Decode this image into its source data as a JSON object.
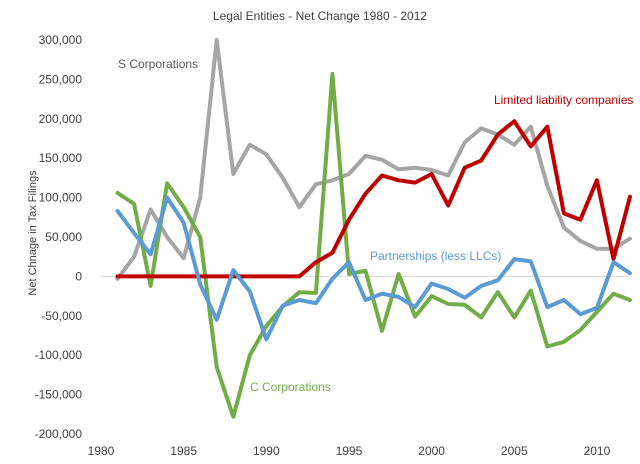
{
  "chart_data": {
    "type": "line",
    "title": "Legal Entities - Net Change 1980 - 2012",
    "xlabel": "",
    "ylabel": "Net Chnage in Tax Filings",
    "xlim": [
      1980,
      2012
    ],
    "ylim": [
      -200000,
      300000
    ],
    "x_ticks": [
      1980,
      1985,
      1990,
      1995,
      2000,
      2005,
      2010
    ],
    "x_tick_labels": [
      "1980",
      "1985",
      "1990",
      "1995",
      "2000",
      "2005",
      "2010"
    ],
    "y_ticks": [
      300000,
      250000,
      200000,
      150000,
      100000,
      50000,
      0,
      -50000,
      -100000,
      -150000,
      -200000
    ],
    "y_tick_labels": [
      "300,000",
      "250,000",
      "200,000",
      "150,000",
      "100,000",
      "50,000",
      "0",
      "-50,000",
      "-100,000",
      "-150,000",
      "-200,000"
    ],
    "grid": false,
    "legend": "none (series labeled directly on the plot)",
    "x": [
      1981,
      1982,
      1983,
      1984,
      1985,
      1986,
      1987,
      1988,
      1989,
      1990,
      1991,
      1992,
      1993,
      1994,
      1995,
      1996,
      1997,
      1998,
      1999,
      2000,
      2001,
      2002,
      2003,
      2004,
      2005,
      2006,
      2007,
      2008,
      2009,
      2010,
      2011,
      2012
    ],
    "series": [
      {
        "name": "S Corporations",
        "color": "#a5a5a5",
        "values": [
          -3000,
          25000,
          85000,
          50000,
          23000,
          100000,
          300000,
          130000,
          167000,
          155000,
          125000,
          88000,
          117000,
          122000,
          130000,
          153000,
          148000,
          136000,
          138000,
          135000,
          128000,
          170000,
          188000,
          180000,
          167000,
          190000,
          115000,
          62000,
          45000,
          35000,
          35000,
          48000
        ]
      },
      {
        "name": "C Corporations",
        "color": "#70ad47",
        "values": [
          106000,
          92000,
          -12000,
          118000,
          88000,
          50000,
          -115000,
          -178000,
          -100000,
          -63000,
          -38000,
          -20000,
          -21000,
          257000,
          3000,
          7000,
          -69000,
          3000,
          -51000,
          -25000,
          -35000,
          -36000,
          -52000,
          -20000,
          -52000,
          -18000,
          -89000,
          -83000,
          -68000,
          -45000,
          -22000,
          -30000
        ]
      },
      {
        "name": "Limited liability companies",
        "color": "#c00000",
        "values": [
          0,
          0,
          0,
          0,
          0,
          0,
          0,
          0,
          0,
          0,
          0,
          0,
          18000,
          30000,
          72000,
          105000,
          128000,
          122000,
          119000,
          130000,
          90000,
          138000,
          147000,
          180000,
          197000,
          165000,
          190000,
          80000,
          72000,
          122000,
          22000,
          101000
        ]
      },
      {
        "name": "Partnerships (less LLCs)",
        "color": "#5b9bd5",
        "values": [
          83000,
          55000,
          28000,
          100000,
          68000,
          -10000,
          -55000,
          8000,
          -19000,
          -80000,
          -37000,
          -30000,
          -34000,
          -3000,
          18000,
          -30000,
          -22000,
          -26000,
          -39000,
          -9000,
          -16000,
          -27000,
          -12000,
          -5000,
          22000,
          19000,
          -39000,
          -30000,
          -48000,
          -40000,
          18000,
          4000
        ]
      }
    ],
    "annotations": [
      {
        "text": "S Corporations",
        "color": "#595959"
      },
      {
        "text": "C Corporations",
        "color": "#70ad47"
      },
      {
        "text": "Limited liability companies",
        "color": "#c00000"
      },
      {
        "text": "Partnerships (less LLCs)",
        "color": "#5b9bd5"
      }
    ]
  }
}
